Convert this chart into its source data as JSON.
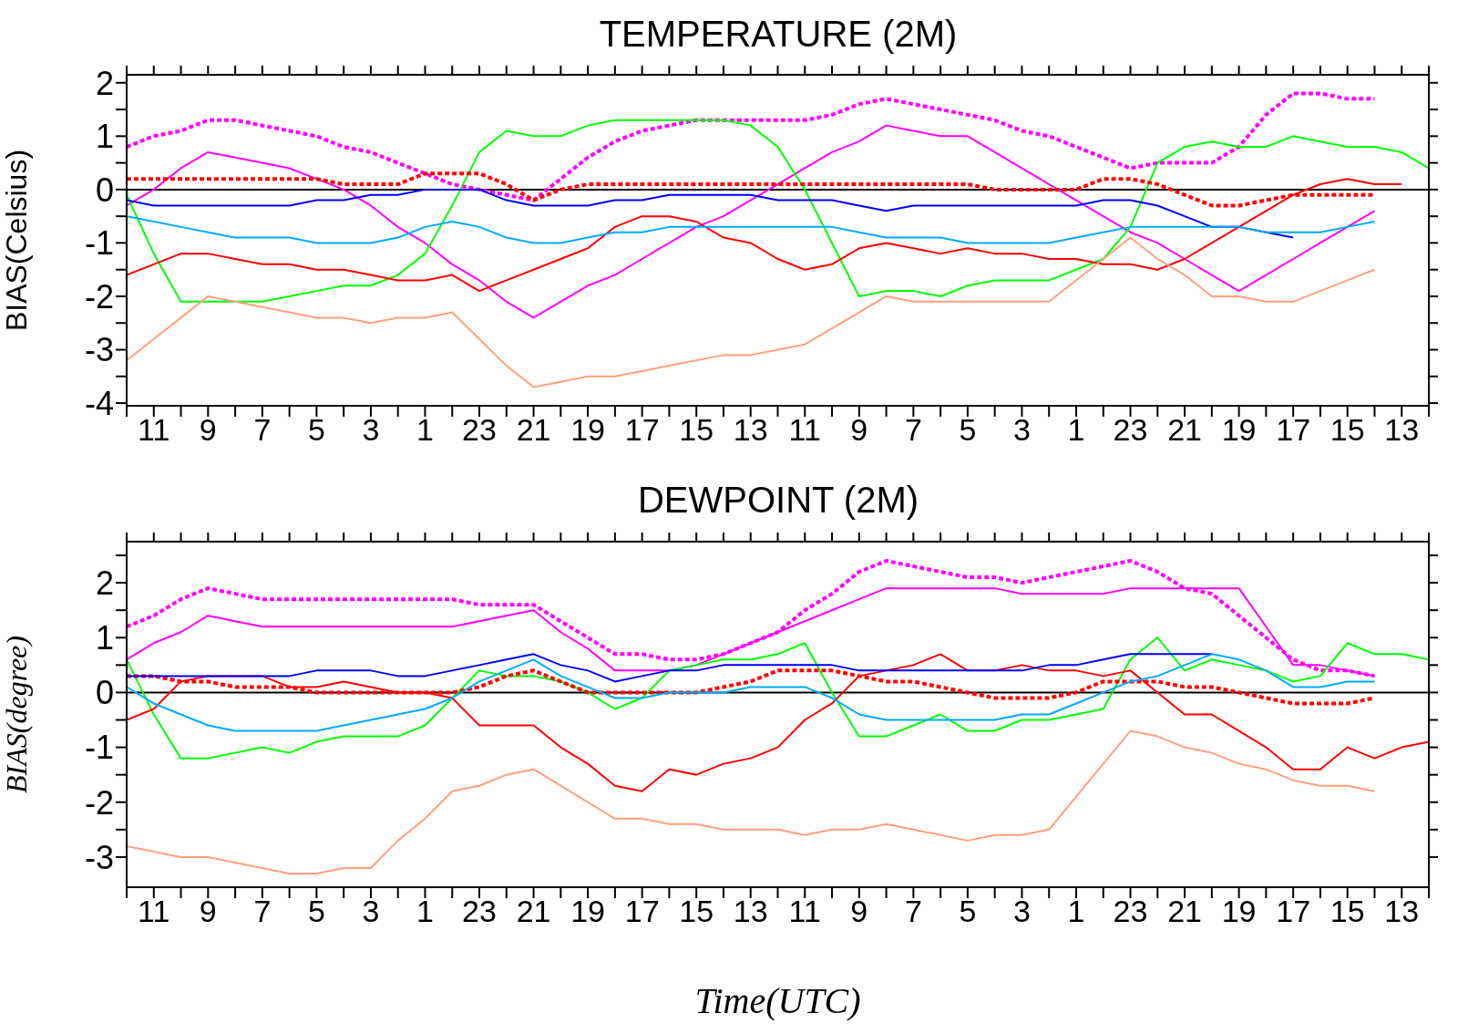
{
  "chart_data": [
    {
      "type": "line",
      "title": "TEMPERATURE (2M)",
      "ylabel": "BIAS(Celsius)",
      "categories": [
        null,
        "11",
        null,
        "9",
        null,
        "7",
        null,
        "5",
        null,
        "3",
        null,
        "1",
        null,
        "23",
        null,
        "21",
        null,
        "19",
        null,
        "17",
        null,
        "15",
        null,
        "13",
        null,
        "11",
        null,
        "9",
        null,
        "7",
        null,
        "5",
        null,
        "3",
        null,
        "1",
        null,
        "23",
        null,
        "21",
        null,
        "19",
        null,
        "17",
        null,
        "15",
        null,
        "13",
        null
      ],
      "ylim": [
        -4.05,
        2.15
      ],
      "yticks": [
        -4,
        {
          "value": -3.5,
          "label": null
        },
        -3,
        {
          "value": -2.5,
          "label": null
        },
        -2,
        {
          "value": -1.5,
          "label": null
        },
        -1,
        {
          "value": -0.5,
          "label": null
        },
        0,
        {
          "value": 0.5,
          "label": null
        },
        1,
        {
          "value": 1.5,
          "label": null
        },
        2
      ],
      "ref_lines": [
        {
          "axis": "y",
          "value": 0,
          "color": "#000000"
        }
      ],
      "series": [
        {
          "color": "#ff00ff",
          "line_style": "dotted",
          "values": [
            0.8,
            1.0,
            1.1,
            1.3,
            1.3,
            1.2,
            1.1,
            1.0,
            0.8,
            0.7,
            0.5,
            0.3,
            0.1,
            0,
            -0.1,
            -0.2,
            0.2,
            0.6,
            0.9,
            1.1,
            1.2,
            1.3,
            1.3,
            1.3,
            1.3,
            1.3,
            1.4,
            1.6,
            1.7,
            1.6,
            1.5,
            1.4,
            1.3,
            1.1,
            1.0,
            0.8,
            0.6,
            0.4,
            0.5,
            0.5,
            0.5,
            0.8,
            1.4,
            1.8,
            1.8,
            1.7,
            1.7,
            null,
            null
          ]
        },
        {
          "color": "#ff00ff",
          "values": [
            -0.3,
            0,
            0.4,
            0.7,
            0.6,
            0.5,
            0.4,
            0.2,
            0,
            -0.3,
            -0.7,
            -1.0,
            -1.4,
            -1.7,
            -2.1,
            -2.4,
            -2.1,
            -1.8,
            -1.6,
            -1.3,
            -1.0,
            -0.7,
            -0.5,
            -0.2,
            0.1,
            0.4,
            0.7,
            0.9,
            1.2,
            1.1,
            1.0,
            1.0,
            0.7,
            0.4,
            0.1,
            -0.2,
            -0.5,
            -0.8,
            -1.0,
            -1.3,
            -1.6,
            -1.9,
            -1.6,
            -1.3,
            -1.0,
            -0.7,
            -0.4,
            null,
            null
          ]
        },
        {
          "color": "#00ff00",
          "values": [
            -0.1,
            -1.2,
            -2.1,
            -2.1,
            -2.1,
            -2.1,
            -2.0,
            -1.9,
            -1.8,
            -1.8,
            -1.6,
            -1.2,
            -0.3,
            0.7,
            1.1,
            1.0,
            1.0,
            1.2,
            1.3,
            1.3,
            1.3,
            1.3,
            1.3,
            1.2,
            0.8,
            0,
            -1.0,
            -2.0,
            -1.9,
            -1.9,
            -2.0,
            -1.8,
            -1.7,
            -1.7,
            -1.7,
            -1.5,
            -1.3,
            -0.7,
            0.5,
            0.8,
            0.9,
            0.8,
            0.8,
            1.0,
            0.9,
            0.8,
            0.8,
            0.7,
            0.4
          ]
        },
        {
          "color": "#ff0000",
          "values": [
            -1.6,
            -1.4,
            -1.2,
            -1.2,
            -1.3,
            -1.4,
            -1.4,
            -1.5,
            -1.5,
            -1.6,
            -1.7,
            -1.7,
            -1.6,
            -1.9,
            -1.7,
            -1.5,
            -1.3,
            -1.1,
            -0.7,
            -0.5,
            -0.5,
            -0.6,
            -0.9,
            -1.0,
            -1.3,
            -1.5,
            -1.4,
            -1.1,
            -1.0,
            -1.1,
            -1.2,
            -1.1,
            -1.2,
            -1.2,
            -1.3,
            -1.3,
            -1.4,
            -1.4,
            -1.5,
            -1.3,
            -1.0,
            -0.7,
            -0.4,
            -0.1,
            0.1,
            0.2,
            0.1,
            0.1,
            null
          ]
        },
        {
          "color": "#ff0000",
          "line_style": "dotted",
          "values": [
            0.2,
            0.2,
            0.2,
            0.2,
            0.2,
            0.2,
            0.2,
            0.2,
            0.1,
            0.1,
            0.1,
            0.3,
            0.3,
            0.3,
            0.1,
            -0.2,
            0,
            0.1,
            0.1,
            0.1,
            0.1,
            0.1,
            0.1,
            0.1,
            0.1,
            0.1,
            0.1,
            0.1,
            0.1,
            0.1,
            0.1,
            0.1,
            0,
            0,
            0,
            0,
            0.2,
            0.2,
            0.1,
            -0.1,
            -0.3,
            -0.3,
            -0.2,
            -0.1,
            -0.1,
            -0.1,
            -0.1,
            null,
            null
          ]
        },
        {
          "color": "#0000ff",
          "values": [
            -0.2,
            -0.3,
            -0.3,
            -0.3,
            -0.3,
            -0.3,
            -0.3,
            -0.2,
            -0.2,
            -0.1,
            -0.1,
            0,
            0,
            0,
            -0.2,
            -0.3,
            -0.3,
            -0.3,
            -0.2,
            -0.2,
            -0.1,
            -0.1,
            -0.1,
            -0.1,
            -0.2,
            -0.2,
            -0.2,
            -0.3,
            -0.4,
            -0.3,
            -0.3,
            -0.3,
            -0.3,
            -0.3,
            -0.3,
            -0.3,
            -0.2,
            -0.2,
            -0.3,
            -0.5,
            -0.7,
            -0.7,
            -0.8,
            -0.9,
            null,
            null,
            null,
            null,
            null
          ]
        },
        {
          "color": "#00aaff",
          "values": [
            -0.5,
            -0.6,
            -0.7,
            -0.8,
            -0.9,
            -0.9,
            -0.9,
            -1.0,
            -1.0,
            -1.0,
            -0.9,
            -0.7,
            -0.6,
            -0.7,
            -0.9,
            -1.0,
            -1.0,
            -0.9,
            -0.8,
            -0.8,
            -0.7,
            -0.7,
            -0.7,
            -0.7,
            -0.7,
            -0.7,
            -0.7,
            -0.8,
            -0.9,
            -0.9,
            -0.9,
            -1.0,
            -1.0,
            -1.0,
            -1.0,
            -0.9,
            -0.8,
            -0.7,
            -0.7,
            -0.7,
            -0.7,
            -0.7,
            -0.8,
            -0.8,
            -0.8,
            -0.7,
            -0.6,
            null,
            null
          ]
        },
        {
          "color": "#ffa07a",
          "values": [
            -3.2,
            -2.8,
            -2.4,
            -2.0,
            -2.1,
            -2.2,
            -2.3,
            -2.4,
            -2.4,
            -2.5,
            -2.4,
            -2.4,
            -2.3,
            -2.8,
            -3.3,
            -3.7,
            -3.6,
            -3.5,
            -3.5,
            -3.4,
            -3.3,
            -3.2,
            -3.1,
            -3.1,
            -3.0,
            -2.9,
            -2.6,
            -2.3,
            -2.0,
            -2.1,
            -2.1,
            -2.1,
            -2.1,
            -2.1,
            -2.1,
            -1.7,
            -1.3,
            -0.9,
            -1.3,
            -1.6,
            -2.0,
            -2.0,
            -2.1,
            -2.1,
            -1.9,
            -1.7,
            -1.5,
            null,
            null
          ]
        }
      ]
    },
    {
      "type": "line",
      "title": "DEWPOINT (2M)",
      "xlabel": "Time(UTC)",
      "ylabel": "BIAS(degree)",
      "categories": [
        null,
        "11",
        null,
        "9",
        null,
        "7",
        null,
        "5",
        null,
        "3",
        null,
        "1",
        null,
        "23",
        null,
        "21",
        null,
        "19",
        null,
        "17",
        null,
        "15",
        null,
        "13",
        null,
        "11",
        null,
        "9",
        null,
        "7",
        null,
        "5",
        null,
        "3",
        null,
        "1",
        null,
        "23",
        null,
        "21",
        null,
        "19",
        null,
        "17",
        null,
        "15",
        null,
        "13",
        null
      ],
      "ylim": [
        -3.55,
        2.75
      ],
      "yticks": [
        -3,
        {
          "value": -2.5,
          "label": null
        },
        -2,
        {
          "value": -1.5,
          "label": null
        },
        -1,
        {
          "value": -0.5,
          "label": null
        },
        0,
        {
          "value": 0.5,
          "label": null
        },
        1,
        {
          "value": 1.5,
          "label": null
        },
        2,
        {
          "value": 2.5,
          "label": null
        }
      ],
      "ref_lines": [
        {
          "axis": "y",
          "value": 0,
          "color": "#000000"
        }
      ],
      "series": [
        {
          "color": "#ff00ff",
          "line_style": "dotted",
          "values": [
            1.2,
            1.4,
            1.7,
            1.9,
            1.8,
            1.7,
            1.7,
            1.7,
            1.7,
            1.7,
            1.7,
            1.7,
            1.7,
            1.6,
            1.6,
            1.6,
            1.3,
            1.0,
            0.7,
            0.7,
            0.6,
            0.6,
            0.7,
            0.9,
            1.1,
            1.5,
            1.8,
            2.2,
            2.4,
            2.3,
            2.2,
            2.1,
            2.1,
            2.0,
            2.1,
            2.2,
            2.3,
            2.4,
            2.2,
            1.9,
            1.8,
            1.4,
            1.0,
            0.6,
            0.4,
            0.4,
            0.3,
            null,
            null
          ]
        },
        {
          "color": "#ff00ff",
          "values": [
            0.6,
            0.9,
            1.1,
            1.4,
            1.3,
            1.2,
            1.2,
            1.2,
            1.2,
            1.2,
            1.2,
            1.2,
            1.2,
            1.3,
            1.4,
            1.5,
            1.1,
            0.8,
            0.4,
            0.4,
            0.4,
            0.5,
            0.7,
            0.9,
            1.1,
            1.3,
            1.5,
            1.7,
            1.9,
            1.9,
            1.9,
            1.9,
            1.9,
            1.8,
            1.8,
            1.8,
            1.8,
            1.9,
            1.9,
            1.9,
            1.9,
            1.9,
            1.2,
            0.5,
            0.5,
            0.4,
            0.3,
            null,
            null
          ]
        },
        {
          "color": "#00ff00",
          "values": [
            0.6,
            -0.4,
            -1.2,
            -1.2,
            -1.1,
            -1.0,
            -1.1,
            -0.9,
            -0.8,
            -0.8,
            -0.8,
            -0.6,
            -0.1,
            0.4,
            0.3,
            0.3,
            0.2,
            0,
            -0.3,
            -0.1,
            0.4,
            0.5,
            0.6,
            0.6,
            0.7,
            0.9,
            0,
            -0.8,
            -0.8,
            -0.6,
            -0.4,
            -0.7,
            -0.7,
            -0.5,
            -0.5,
            -0.4,
            -0.3,
            0.6,
            1.0,
            0.4,
            0.6,
            0.5,
            0.4,
            0.2,
            0.3,
            0.9,
            0.7,
            0.7,
            0.6
          ]
        },
        {
          "color": "#ff0000",
          "values": [
            -0.5,
            -0.3,
            0.2,
            0.3,
            0.3,
            0.3,
            0.1,
            0.1,
            0.2,
            0.1,
            0,
            0,
            -0.1,
            -0.6,
            -0.6,
            -0.6,
            -1.0,
            -1.3,
            -1.7,
            -1.8,
            -1.4,
            -1.5,
            -1.3,
            -1.2,
            -1.0,
            -0.5,
            -0.2,
            0.3,
            0.4,
            0.5,
            0.7,
            0.4,
            0.4,
            0.5,
            0.4,
            0.4,
            0.3,
            0.4,
            0,
            -0.4,
            -0.4,
            -0.7,
            -1.0,
            -1.4,
            -1.4,
            -1.0,
            -1.2,
            -1.0,
            -0.9
          ]
        },
        {
          "color": "#ff0000",
          "line_style": "dotted",
          "values": [
            0.3,
            0.3,
            0.2,
            0.2,
            0.1,
            0.1,
            0.1,
            0,
            0,
            0,
            0,
            0,
            0,
            0.1,
            0.3,
            0.4,
            0.2,
            0,
            0,
            0,
            0,
            0,
            0.1,
            0.2,
            0.4,
            0.4,
            0.4,
            0.3,
            0.2,
            0.2,
            0.1,
            0,
            -0.1,
            -0.1,
            -0.1,
            0,
            0.2,
            0.2,
            0.2,
            0.1,
            0.1,
            0,
            -0.1,
            -0.2,
            -0.2,
            -0.2,
            -0.1,
            null,
            null
          ]
        },
        {
          "color": "#0000ff",
          "values": [
            0.3,
            0.3,
            0.3,
            0.3,
            0.3,
            0.3,
            0.3,
            0.4,
            0.4,
            0.4,
            0.3,
            0.3,
            0.4,
            0.5,
            0.6,
            0.7,
            0.5,
            0.4,
            0.2,
            0.3,
            0.4,
            0.4,
            0.5,
            0.5,
            0.5,
            0.5,
            0.5,
            0.4,
            0.4,
            0.4,
            0.4,
            0.4,
            0.4,
            0.4,
            0.5,
            0.5,
            0.6,
            0.7,
            0.7,
            0.7,
            0.7,
            null,
            null,
            null,
            null,
            null,
            null,
            null,
            null
          ]
        },
        {
          "color": "#00aaff",
          "values": [
            0.1,
            -0.2,
            -0.4,
            -0.6,
            -0.7,
            -0.7,
            -0.7,
            -0.7,
            -0.6,
            -0.5,
            -0.4,
            -0.3,
            -0.1,
            0.2,
            0.4,
            0.6,
            0.3,
            0.1,
            -0.1,
            -0.1,
            0,
            0,
            0,
            0.1,
            0.1,
            0.1,
            -0.1,
            -0.4,
            -0.5,
            -0.5,
            -0.5,
            -0.5,
            -0.5,
            -0.4,
            -0.4,
            -0.2,
            0,
            0.2,
            0.3,
            0.5,
            0.7,
            0.6,
            0.4,
            0.1,
            0.1,
            0.2,
            0.2,
            null,
            null
          ]
        },
        {
          "color": "#ffa07a",
          "values": [
            -2.8,
            -2.9,
            -3.0,
            -3.0,
            -3.1,
            -3.2,
            -3.3,
            -3.3,
            -3.2,
            -3.2,
            -2.7,
            -2.3,
            -1.8,
            -1.7,
            -1.5,
            -1.4,
            -1.7,
            -2.0,
            -2.3,
            -2.3,
            -2.4,
            -2.4,
            -2.5,
            -2.5,
            -2.5,
            -2.6,
            -2.5,
            -2.5,
            -2.4,
            -2.5,
            -2.6,
            -2.7,
            -2.6,
            -2.6,
            -2.5,
            -1.9,
            -1.3,
            -0.7,
            -0.8,
            -1.0,
            -1.1,
            -1.3,
            -1.4,
            -1.6,
            -1.7,
            -1.7,
            -1.8,
            null,
            null
          ]
        }
      ]
    }
  ]
}
